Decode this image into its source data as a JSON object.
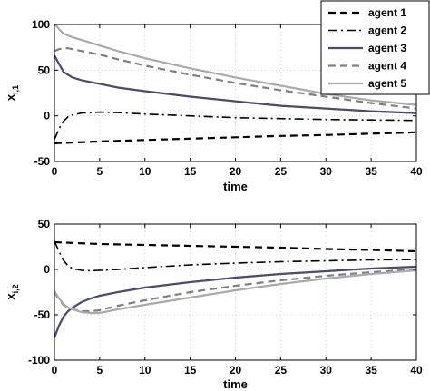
{
  "chart_data": [
    {
      "type": "line",
      "xlabel": "time",
      "ylabel": "x",
      "ylabel_sub": "i,1",
      "xlim": [
        0,
        40
      ],
      "ylim": [
        -50,
        100
      ],
      "xticks": [
        0,
        5,
        10,
        15,
        20,
        25,
        30,
        35,
        40
      ],
      "yticks": [
        -50,
        0,
        50,
        100
      ],
      "grid": true,
      "legend_position": "top-right",
      "series": [
        {
          "name": "agent 1",
          "style": "dashed",
          "color": "#000000",
          "x": [
            0,
            5,
            10,
            15,
            20,
            25,
            30,
            35,
            40
          ],
          "y": [
            -30,
            -28,
            -26.5,
            -25,
            -23.5,
            -22,
            -21,
            -19.5,
            -18
          ]
        },
        {
          "name": "agent 2",
          "style": "dashdot",
          "color": "#000000",
          "x": [
            0,
            0.5,
            1,
            1.5,
            2,
            3,
            4,
            5,
            7,
            10,
            15,
            20,
            25,
            30,
            35,
            40
          ],
          "y": [
            -26,
            -14,
            -6,
            -1,
            1,
            3,
            3.5,
            4,
            3.5,
            2,
            0,
            -2,
            -3,
            -4,
            -4.5,
            -5
          ]
        },
        {
          "name": "agent 3",
          "style": "solid",
          "color": "#4b4b6e",
          "x": [
            0,
            0.5,
            1,
            1.5,
            2,
            3,
            4,
            5,
            7,
            10,
            15,
            20,
            25,
            30,
            35,
            40
          ],
          "y": [
            66,
            57,
            48,
            45,
            42,
            39,
            37,
            35,
            31,
            27,
            21,
            16,
            11,
            8,
            5,
            3
          ]
        },
        {
          "name": "agent 4",
          "style": "dashed",
          "color": "#808080",
          "x": [
            0,
            0.5,
            1,
            1.5,
            2,
            3,
            4,
            5,
            7,
            10,
            15,
            20,
            25,
            30,
            35,
            40
          ],
          "y": [
            71,
            73,
            74,
            74,
            73,
            71,
            69,
            67,
            62,
            55,
            45,
            36,
            28,
            21,
            14,
            8
          ]
        },
        {
          "name": "agent 5",
          "style": "solid",
          "color": "#aaaaaa",
          "x": [
            0,
            0.5,
            1,
            1.5,
            2,
            3,
            4,
            5,
            7,
            10,
            15,
            20,
            25,
            30,
            35,
            40
          ],
          "y": [
            101,
            95,
            90,
            88,
            86,
            83,
            80,
            77,
            71,
            63,
            52,
            42,
            33,
            24,
            17,
            12
          ]
        }
      ]
    },
    {
      "type": "line",
      "xlabel": "time",
      "ylabel": "x",
      "ylabel_sub": "i,2",
      "xlim": [
        0,
        40
      ],
      "ylim": [
        -100,
        50
      ],
      "xticks": [
        0,
        5,
        10,
        15,
        20,
        25,
        30,
        35,
        40
      ],
      "yticks": [
        -100,
        -50,
        0,
        50
      ],
      "grid": true,
      "series": [
        {
          "name": "agent 1",
          "style": "dashed",
          "color": "#000000",
          "x": [
            0,
            5,
            10,
            15,
            20,
            25,
            30,
            35,
            40
          ],
          "y": [
            30,
            28,
            27,
            26,
            25,
            24,
            22.5,
            21.5,
            20
          ]
        },
        {
          "name": "agent 2",
          "style": "dashdot",
          "color": "#000000",
          "x": [
            0,
            0.5,
            1,
            1.5,
            2,
            3,
            4,
            5,
            7,
            10,
            15,
            20,
            25,
            30,
            35,
            40
          ],
          "y": [
            31,
            20,
            10,
            4,
            1,
            -1,
            -1.5,
            -1,
            0,
            2,
            5,
            7,
            8.5,
            9.5,
            10.5,
            11
          ]
        },
        {
          "name": "agent 3",
          "style": "solid",
          "color": "#4b4b6e",
          "x": [
            0,
            0.5,
            1,
            1.5,
            2,
            3,
            4,
            5,
            7,
            10,
            15,
            20,
            25,
            30,
            35,
            40
          ],
          "y": [
            -75,
            -62,
            -52,
            -46,
            -42,
            -36,
            -32,
            -29,
            -25,
            -20,
            -14,
            -9,
            -5,
            -2,
            1,
            3
          ]
        },
        {
          "name": "agent 4",
          "style": "dashed",
          "color": "#808080",
          "x": [
            0,
            0.5,
            1,
            1.5,
            2,
            3,
            4,
            5,
            7,
            10,
            15,
            20,
            25,
            30,
            35,
            40
          ],
          "y": [
            -25,
            -33,
            -39,
            -42,
            -44,
            -46,
            -46,
            -45,
            -40,
            -34,
            -25,
            -18,
            -12,
            -7,
            -3,
            0
          ]
        },
        {
          "name": "agent 5",
          "style": "solid",
          "color": "#aaaaaa",
          "x": [
            0,
            0.5,
            1,
            1.5,
            2,
            3,
            4,
            5,
            7,
            10,
            15,
            20,
            25,
            30,
            35,
            40
          ],
          "y": [
            -24,
            -32,
            -38,
            -42,
            -44,
            -47,
            -48,
            -48,
            -44,
            -39,
            -31,
            -23,
            -16,
            -10,
            -5,
            -1
          ]
        }
      ]
    }
  ]
}
